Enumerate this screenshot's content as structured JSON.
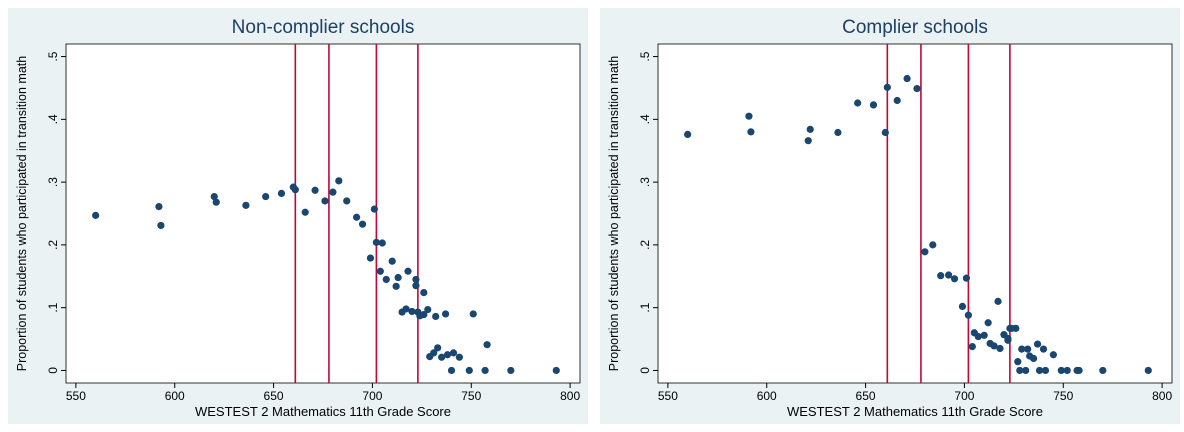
{
  "chart_data": [
    {
      "type": "scatter",
      "title": "Non-complier schools",
      "xlabel": "WESTEST 2 Mathematics 11th Grade Score",
      "ylabel": "Proportion of students who participated in transition math",
      "xlim": [
        545,
        805
      ],
      "ylim": [
        -0.02,
        0.52
      ],
      "xticks": [
        "550",
        "600",
        "650",
        "700",
        "750",
        "800"
      ],
      "yticks": [
        "0",
        ".1",
        ".2",
        ".3",
        ".4",
        ".5"
      ],
      "xtick_values": [
        550,
        600,
        650,
        700,
        750,
        800
      ],
      "ytick_values": [
        0,
        0.1,
        0.2,
        0.3,
        0.4,
        0.5
      ],
      "vlines": [
        661,
        678,
        702,
        723
      ],
      "colors": {
        "points": "#1a476f",
        "vlines": "#c10534",
        "background": "#eaf2f3",
        "plot": "#ffffff",
        "title": "#1e3f66"
      },
      "points": [
        [
          560,
          0.247
        ],
        [
          592,
          0.261
        ],
        [
          593,
          0.231
        ],
        [
          620,
          0.277
        ],
        [
          621,
          0.268
        ],
        [
          636,
          0.263
        ],
        [
          646,
          0.277
        ],
        [
          654,
          0.282
        ],
        [
          660,
          0.292
        ],
        [
          661,
          0.288
        ],
        [
          666,
          0.252
        ],
        [
          671,
          0.287
        ],
        [
          676,
          0.27
        ],
        [
          680,
          0.284
        ],
        [
          683,
          0.302
        ],
        [
          687,
          0.27
        ],
        [
          692,
          0.244
        ],
        [
          695,
          0.233
        ],
        [
          699,
          0.179
        ],
        [
          701,
          0.257
        ],
        [
          702,
          0.204
        ],
        [
          704,
          0.158
        ],
        [
          705,
          0.203
        ],
        [
          707,
          0.145
        ],
        [
          710,
          0.174
        ],
        [
          712,
          0.134
        ],
        [
          713,
          0.148
        ],
        [
          715,
          0.093
        ],
        [
          717,
          0.098
        ],
        [
          718,
          0.158
        ],
        [
          720,
          0.094
        ],
        [
          722,
          0.135
        ],
        [
          722,
          0.145
        ],
        [
          723,
          0.093
        ],
        [
          724,
          0.087
        ],
        [
          726,
          0.089
        ],
        [
          726,
          0.124
        ],
        [
          728,
          0.097
        ],
        [
          729,
          0.022
        ],
        [
          731,
          0.028
        ],
        [
          732,
          0.086
        ],
        [
          733,
          0.036
        ],
        [
          735,
          0.021
        ],
        [
          737,
          0.09
        ],
        [
          738,
          0.025
        ],
        [
          740,
          0.0
        ],
        [
          741,
          0.028
        ],
        [
          744,
          0.021
        ],
        [
          749,
          0.0
        ],
        [
          751,
          0.09
        ],
        [
          757,
          0.0
        ],
        [
          758,
          0.041
        ],
        [
          770,
          0.0
        ],
        [
          793,
          0.0
        ]
      ]
    },
    {
      "type": "scatter",
      "title": "Complier schools",
      "xlabel": "WESTEST 2 Mathematics 11th Grade Score",
      "ylabel": "Proportion of students who participated in transition math",
      "xlim": [
        545,
        805
      ],
      "ylim": [
        -0.02,
        0.52
      ],
      "xticks": [
        "550",
        "600",
        "650",
        "700",
        "750",
        "800"
      ],
      "yticks": [
        "0",
        ".1",
        ".2",
        ".3",
        ".4",
        ".5"
      ],
      "xtick_values": [
        550,
        600,
        650,
        700,
        750,
        800
      ],
      "ytick_values": [
        0,
        0.1,
        0.2,
        0.3,
        0.4,
        0.5
      ],
      "vlines": [
        661,
        678,
        702,
        723
      ],
      "colors": {
        "points": "#1a476f",
        "vlines": "#c10534",
        "background": "#eaf2f3",
        "plot": "#ffffff",
        "title": "#1e3f66"
      },
      "points": [
        [
          560,
          0.376
        ],
        [
          591,
          0.405
        ],
        [
          592,
          0.38
        ],
        [
          621,
          0.366
        ],
        [
          622,
          0.384
        ],
        [
          636,
          0.379
        ],
        [
          646,
          0.426
        ],
        [
          654,
          0.423
        ],
        [
          660,
          0.379
        ],
        [
          661,
          0.451
        ],
        [
          666,
          0.43
        ],
        [
          671,
          0.465
        ],
        [
          676,
          0.449
        ],
        [
          680,
          0.189
        ],
        [
          684,
          0.2
        ],
        [
          688,
          0.151
        ],
        [
          692,
          0.152
        ],
        [
          695,
          0.146
        ],
        [
          699,
          0.102
        ],
        [
          701,
          0.147
        ],
        [
          702,
          0.088
        ],
        [
          704,
          0.038
        ],
        [
          705,
          0.06
        ],
        [
          707,
          0.054
        ],
        [
          710,
          0.056
        ],
        [
          712,
          0.076
        ],
        [
          713,
          0.043
        ],
        [
          715,
          0.039
        ],
        [
          717,
          0.11
        ],
        [
          718,
          0.035
        ],
        [
          720,
          0.057
        ],
        [
          722,
          0.048
        ],
        [
          722,
          0.051
        ],
        [
          723,
          0.067
        ],
        [
          724,
          0.067
        ],
        [
          726,
          0.067
        ],
        [
          727,
          0.014
        ],
        [
          728,
          0.0
        ],
        [
          729,
          0.034
        ],
        [
          731,
          0.0
        ],
        [
          732,
          0.034
        ],
        [
          733,
          0.023
        ],
        [
          735,
          0.019
        ],
        [
          737,
          0.042
        ],
        [
          738,
          0.0
        ],
        [
          740,
          0.034
        ],
        [
          741,
          0.0
        ],
        [
          745,
          0.025
        ],
        [
          749,
          0.0
        ],
        [
          752,
          0.0
        ],
        [
          757,
          0.0
        ],
        [
          758,
          0.0
        ],
        [
          770,
          0.0
        ],
        [
          793,
          0.0
        ]
      ]
    }
  ]
}
